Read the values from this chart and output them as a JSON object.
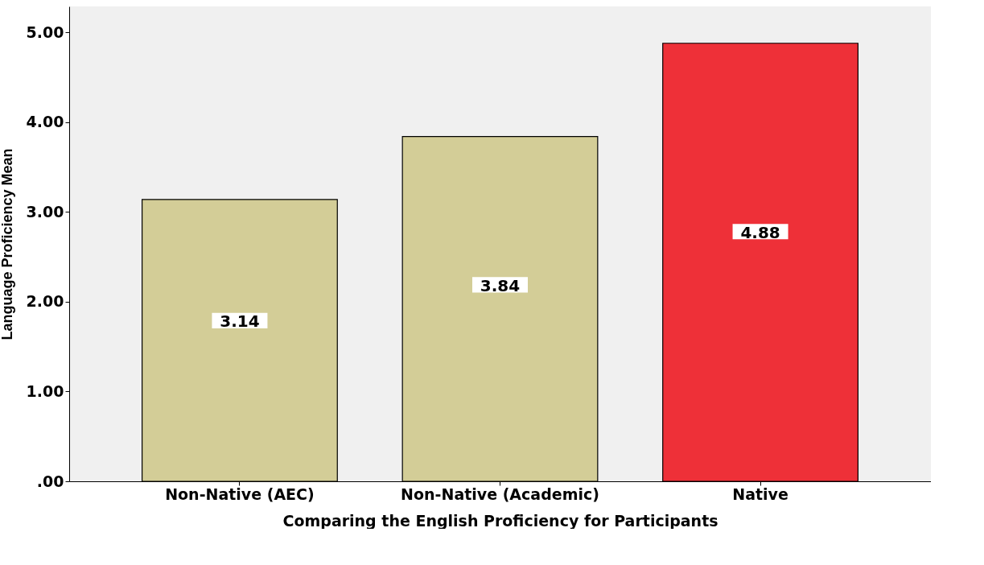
{
  "chart_data": {
    "type": "bar",
    "xlabel": "Comparing the English Proficiency for Participants",
    "ylabel": "Language Proficiency Mean",
    "categories": [
      "Non-Native (AEC)",
      "Non-Native (Academic)",
      "Native"
    ],
    "values": [
      3.14,
      3.84,
      4.88
    ],
    "colors": [
      "#d3cd97",
      "#d3cd97",
      "#ee3038"
    ],
    "ylim": [
      0,
      5.29
    ],
    "yticks": [
      {
        "value": 0,
        "label": ".00"
      },
      {
        "value": 1,
        "label": "1.00"
      },
      {
        "value": 2,
        "label": "2.00"
      },
      {
        "value": 3,
        "label": "3.00"
      },
      {
        "value": 4,
        "label": "4.00"
      },
      {
        "value": 5,
        "label": "5.00"
      }
    ],
    "data_labels": true,
    "grid": false,
    "legend": false
  }
}
